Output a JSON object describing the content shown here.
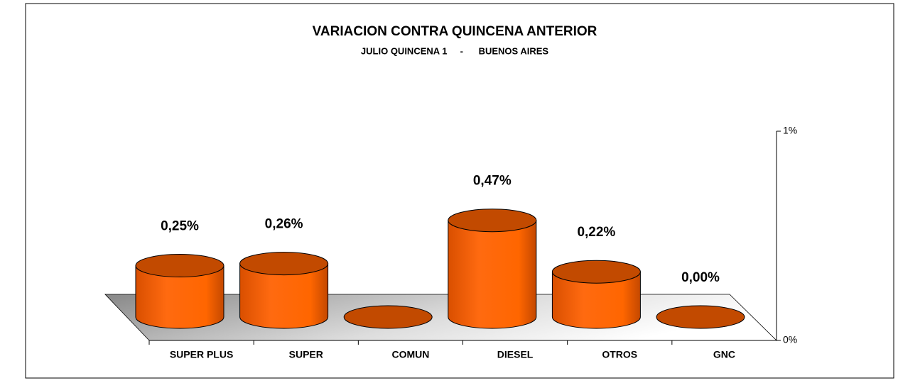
{
  "chart_data": {
    "type": "bar3d",
    "title": "VARIACION CONTRA QUINCENA ANTERIOR",
    "subtitle": "JULIO QUINCENA 1     -      BUENOS AIRES",
    "categories": [
      "SUPER PLUS",
      "SUPER",
      "COMUN",
      "DIESEL",
      "OTROS",
      "GNC"
    ],
    "values": [
      0.25,
      0.26,
      0,
      0.47,
      0.22,
      0
    ],
    "value_labels": [
      "0,25%",
      "0,26%",
      null,
      "0,47%",
      "0,22%",
      "0,00%"
    ],
    "color": "#ff6600",
    "ylim": [
      0,
      1
    ],
    "yticks": [
      {
        "value": 0,
        "label": "0%"
      },
      {
        "value": 1,
        "label": "1%"
      }
    ]
  }
}
